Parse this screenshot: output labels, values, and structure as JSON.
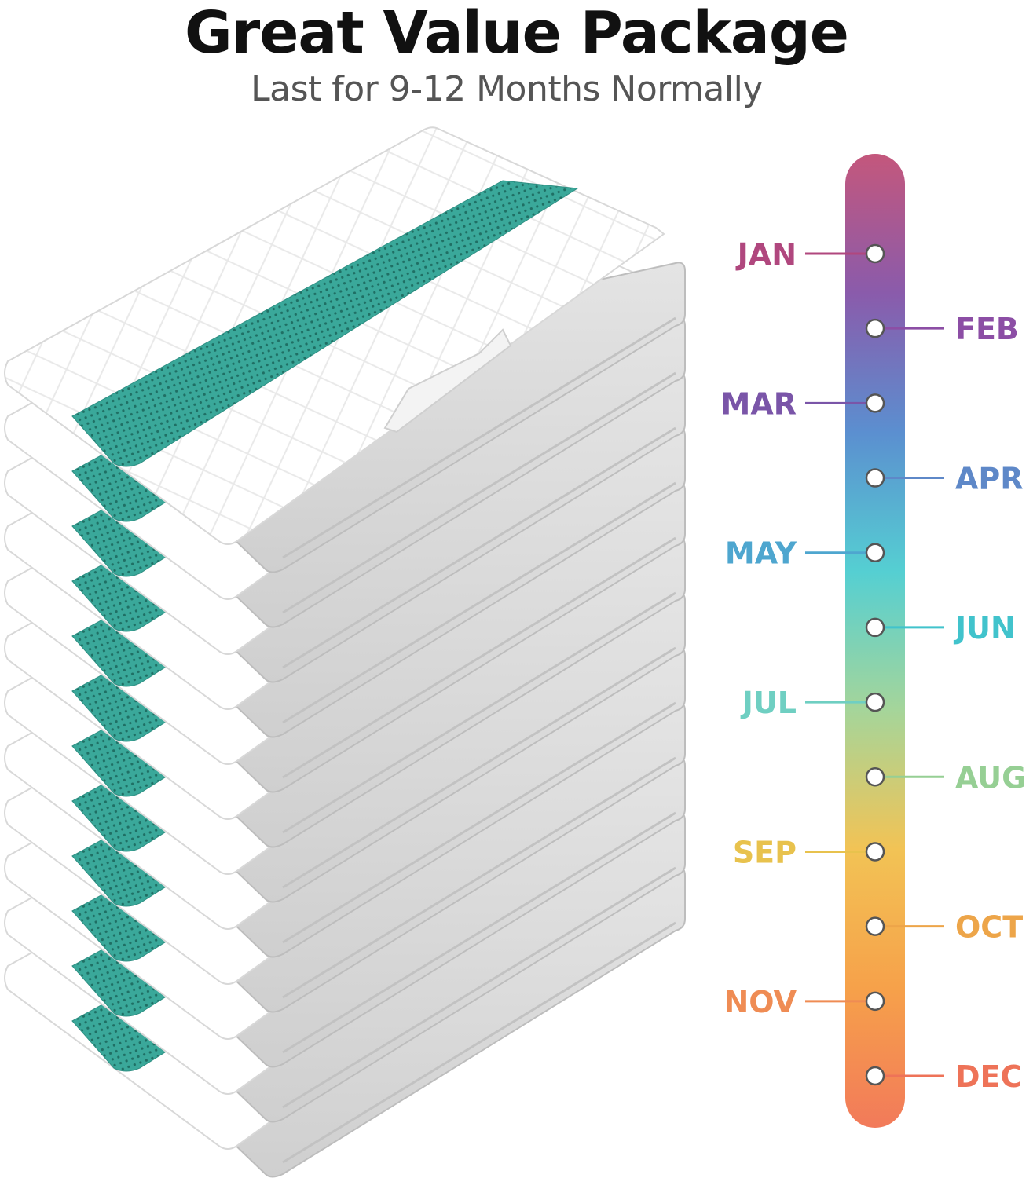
{
  "header": {
    "title": "Great Value Package",
    "subtitle": "Last for 9-12 Months Normally"
  },
  "product": {
    "pad_count": 12,
    "pad_band_color": "#3aa89a"
  },
  "timeline": {
    "gradient_colors": [
      "#c4577c",
      "#8a5bab",
      "#5b8fd0",
      "#55cfd2",
      "#a5d59a",
      "#f2c355",
      "#f6a14a",
      "#f27a5a"
    ],
    "months": [
      {
        "label": "JAN",
        "side": "left",
        "color": "#b0477e"
      },
      {
        "label": "FEB",
        "side": "right",
        "color": "#8c4ea5"
      },
      {
        "label": "MAR",
        "side": "left",
        "color": "#7a55a8"
      },
      {
        "label": "APR",
        "side": "right",
        "color": "#5e88c8"
      },
      {
        "label": "MAY",
        "side": "left",
        "color": "#4ea6cf"
      },
      {
        "label": "JUN",
        "side": "right",
        "color": "#41c3cc"
      },
      {
        "label": "JUL",
        "side": "left",
        "color": "#6fcfc2"
      },
      {
        "label": "AUG",
        "side": "right",
        "color": "#96cf94"
      },
      {
        "label": "SEP",
        "side": "left",
        "color": "#e8c24d"
      },
      {
        "label": "OCT",
        "side": "right",
        "color": "#eda549"
      },
      {
        "label": "NOV",
        "side": "left",
        "color": "#ef8c54"
      },
      {
        "label": "DEC",
        "side": "right",
        "color": "#ee7358"
      }
    ]
  }
}
